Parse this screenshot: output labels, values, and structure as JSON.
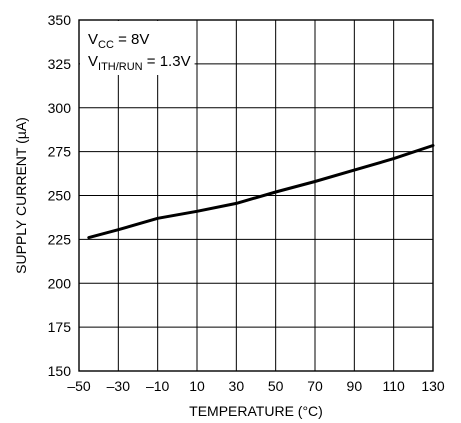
{
  "chart_data": {
    "type": "line",
    "title": "",
    "xlabel": "TEMPERATURE (°C)",
    "ylabel": "SUPPLY CURRENT (µA)",
    "xlim": [
      -50,
      130
    ],
    "ylim": [
      150,
      350
    ],
    "xticks": [
      -50,
      -30,
      -10,
      10,
      30,
      50,
      70,
      90,
      110,
      130
    ],
    "xtick_labels": [
      "–50",
      "–30",
      "–10",
      "10",
      "30",
      "50",
      "70",
      "90",
      "110",
      "130"
    ],
    "yticks": [
      150,
      175,
      200,
      225,
      250,
      275,
      300,
      325,
      350
    ],
    "ytick_labels": [
      "150",
      "175",
      "200",
      "225",
      "250",
      "275",
      "300",
      "325",
      "350"
    ],
    "grid": true,
    "legend": "none",
    "annotations": [
      {
        "main": "V",
        "sub": "CC",
        "rest": " = 8V"
      },
      {
        "main": "V",
        "sub": "ITH/RUN",
        "rest": " = 1.3V"
      }
    ],
    "series": [
      {
        "color": "#000000",
        "x": [
          -45,
          -30,
          -10,
          10,
          30,
          50,
          70,
          90,
          110,
          130
        ],
        "y": [
          226,
          230.5,
          237,
          241,
          245.5,
          252,
          258,
          264.5,
          271,
          278.5
        ]
      }
    ]
  }
}
